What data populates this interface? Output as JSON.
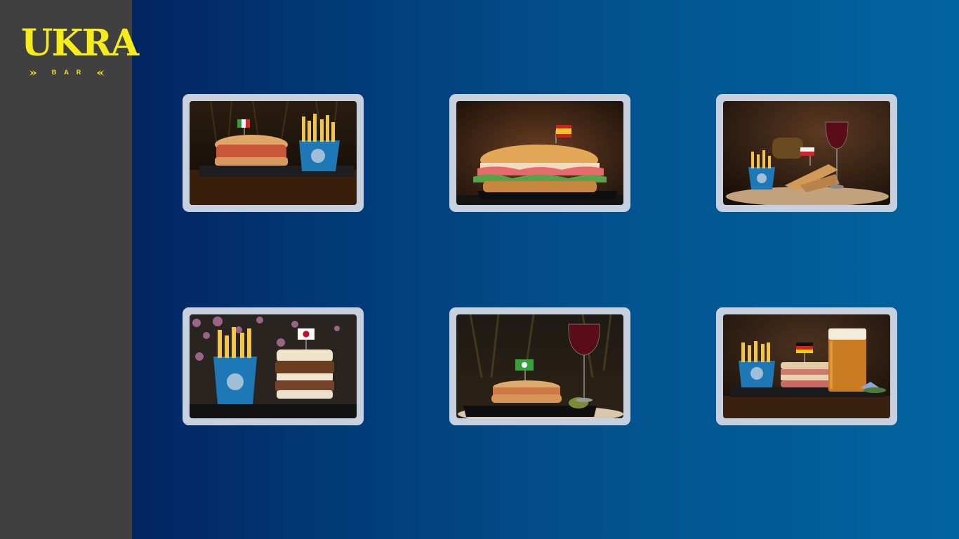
{
  "brand": {
    "name": "UKRA",
    "tagline": "BAR",
    "accent_color": "#f5ec1a"
  },
  "menu_items": [
    {
      "flag": "italy-flag-icon",
      "sides": "fries"
    },
    {
      "flag": "spain-flag-icon",
      "sides": "none"
    },
    {
      "flag": "poland-flag-icon",
      "sides": "fries-and-wine"
    },
    {
      "flag": "japan-flag-icon",
      "sides": "fries"
    },
    {
      "flag": "green-flag-icon",
      "sides": "wine"
    },
    {
      "flag": "germany-flag-icon",
      "sides": "fries-and-beer"
    }
  ],
  "colors": {
    "sidebar": "#404040",
    "card_frame": "#c6d0de",
    "gradient_start": "#021750",
    "gradient_end": "#02649f"
  }
}
